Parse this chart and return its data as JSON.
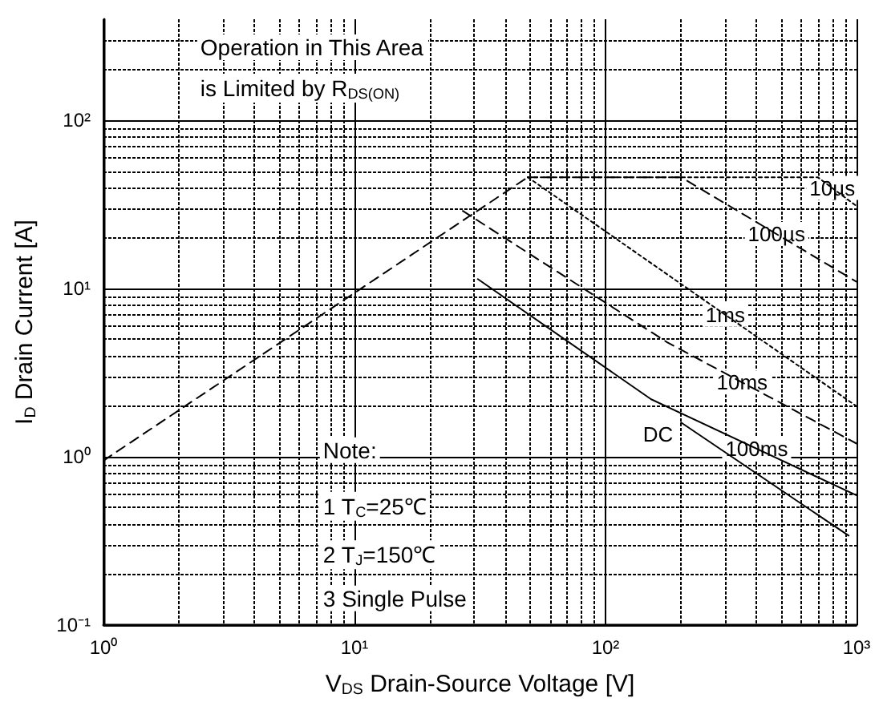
{
  "chart_data": {
    "type": "line",
    "xlabel": "V$_{DS}$ Drain-Source Voltage [V]",
    "ylabel": "I$_{D}$ Drain Current [A]",
    "log": "xy",
    "grid": true,
    "marker": "none",
    "xlim": [
      1,
      1000
    ],
    "xticks": [
      {
        "value": 1,
        "label": "10⁰"
      },
      {
        "value": 10,
        "label": "10¹"
      },
      {
        "value": 100,
        "label": "10²"
      },
      {
        "value": 1000,
        "label": "10³"
      }
    ],
    "ylim": [
      0.1,
      400
    ],
    "yticks": [
      {
        "value": 0.1,
        "label": "10⁻¹"
      },
      {
        "value": 1,
        "label": "10⁰"
      },
      {
        "value": 10,
        "label": "10¹"
      },
      {
        "value": 100,
        "label": "10²"
      }
    ],
    "series": [
      {
        "color": "#000000",
        "line_style": "dashed",
        "x": [
          1,
          49
        ],
        "values": [
          0.95,
          46
        ]
      },
      {
        "name": "10µs",
        "color": "#000000",
        "line_style": "dotted",
        "x": [
          49,
          700,
          1000
        ],
        "values": [
          46,
          46,
          31
        ]
      },
      {
        "name": "100µs",
        "color": "#000000",
        "line_style": "dashed",
        "x": [
          49,
          200,
          1000
        ],
        "values": [
          46,
          46,
          11
        ]
      },
      {
        "name": "1ms",
        "color": "#000000",
        "line_style": "dotted",
        "x": [
          49,
          1000
        ],
        "values": [
          46,
          2
        ]
      },
      {
        "name": "10ms",
        "color": "#000000",
        "line_style": "dashed",
        "x": [
          27,
          176,
          1000
        ],
        "values": [
          29,
          4.8,
          1.2
        ]
      },
      {
        "name": "100ms",
        "color": "#000000",
        "line_style": "solid",
        "x": [
          31,
          152,
          1000
        ],
        "values": [
          11.4,
          2.2,
          0.59
        ]
      },
      {
        "name": "DC",
        "color": "#000000",
        "line_style": "solid",
        "x": [
          200,
          930
        ],
        "values": [
          1.6,
          0.34
        ]
      }
    ],
    "annotations": [
      "Operation in This Area",
      "is Limited by R$_{DS(ON)}$",
      "Note:",
      "1 T$_{C}$=25℃",
      "2 T$_{J}$=150℃",
      "3 Single Pulse"
    ]
  }
}
